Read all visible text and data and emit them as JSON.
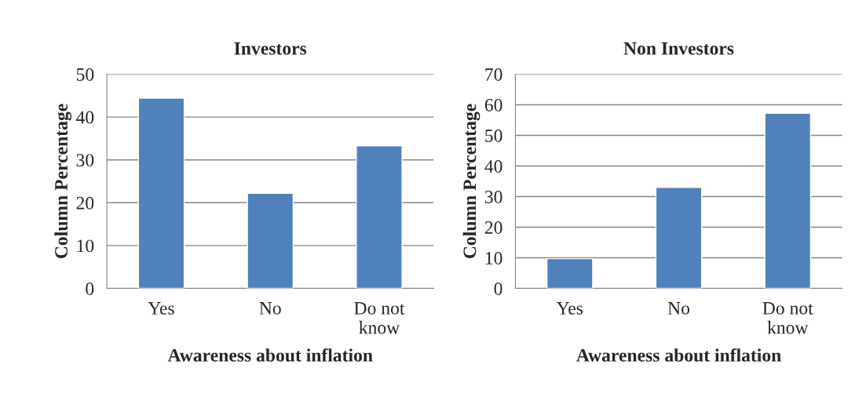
{
  "chart_data": [
    {
      "type": "bar",
      "title": "Investors",
      "xlabel": "Awareness about inflation",
      "ylabel": "Column Percentage",
      "categories": [
        "Yes",
        "No",
        "Do not\nknow"
      ],
      "values": [
        44.4,
        22.2,
        33.3
      ],
      "color": "#4f81bd",
      "ylim": [
        0,
        50
      ],
      "yticks": [
        0,
        10,
        20,
        30,
        40,
        50
      ],
      "grid": "y"
    },
    {
      "type": "bar",
      "title": "Non Investors",
      "xlabel": "Awareness about inflation",
      "ylabel": "Column Percentage",
      "categories": [
        "Yes",
        "No",
        "Do not\nknow"
      ],
      "values": [
        9.7,
        33.0,
        57.2
      ],
      "color": "#4f81bd",
      "ylim": [
        0,
        70
      ],
      "yticks": [
        0,
        10,
        20,
        30,
        40,
        50,
        60,
        70
      ],
      "grid": "y"
    }
  ]
}
